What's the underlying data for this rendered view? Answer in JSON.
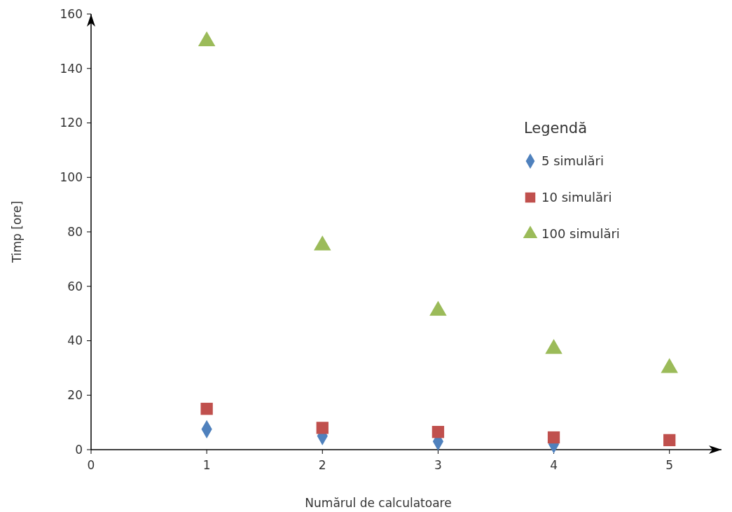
{
  "chart_data": {
    "type": "scatter",
    "xlabel": "Numărul de calculatoare",
    "ylabel": "Timp [ore]",
    "legend_title": "Legendă",
    "x": [
      1,
      2,
      3,
      4,
      5
    ],
    "series": [
      {
        "name": "5 simulări",
        "color": "#4f81bd",
        "marker": "diamond",
        "values": [
          7.5,
          5,
          3,
          2,
          null
        ]
      },
      {
        "name": "10 simulări",
        "color": "#c0504d",
        "marker": "square",
        "values": [
          15,
          8,
          6.5,
          4.5,
          3.5
        ]
      },
      {
        "name": "100 simulări",
        "color": "#9bbb59",
        "marker": "triangle",
        "values": [
          150,
          75,
          51,
          37,
          30
        ]
      }
    ],
    "xlim": [
      0,
      5.45
    ],
    "ylim": [
      0,
      160
    ],
    "xticks": [
      0,
      1,
      2,
      3,
      4,
      5
    ],
    "yticks": [
      0,
      20,
      40,
      60,
      80,
      100,
      120,
      140,
      160
    ],
    "grid": false,
    "legend": "right"
  }
}
